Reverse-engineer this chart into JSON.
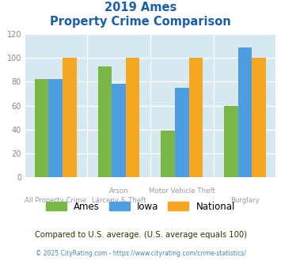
{
  "title_line1": "2019 Ames",
  "title_line2": "Property Crime Comparison",
  "cat_labels_top": [
    "Arson",
    "Motor Vehicle Theft"
  ],
  "cat_labels_bottom": [
    "All Property Crime",
    "Larceny & Theft",
    "",
    "Burglary"
  ],
  "ames": [
    82,
    93,
    39,
    60
  ],
  "iowa": [
    82,
    78,
    75,
    109
  ],
  "national": [
    100,
    100,
    100,
    100
  ],
  "ames_color": "#7ab648",
  "iowa_color": "#4d9de0",
  "national_color": "#f5a623",
  "ylim": [
    0,
    120
  ],
  "yticks": [
    0,
    20,
    40,
    60,
    80,
    100,
    120
  ],
  "bg_color": "#d6e9f0",
  "fig_bg": "#ffffff",
  "title_color": "#1a5fa8",
  "footer_text": "Compared to U.S. average. (U.S. average equals 100)",
  "footer_color": "#333300",
  "credit_text": "© 2025 CityRating.com - https://www.cityrating.com/crime-statistics/",
  "credit_color": "#4488aa",
  "legend_labels": [
    "Ames",
    "Iowa",
    "National"
  ],
  "bar_width": 0.22
}
